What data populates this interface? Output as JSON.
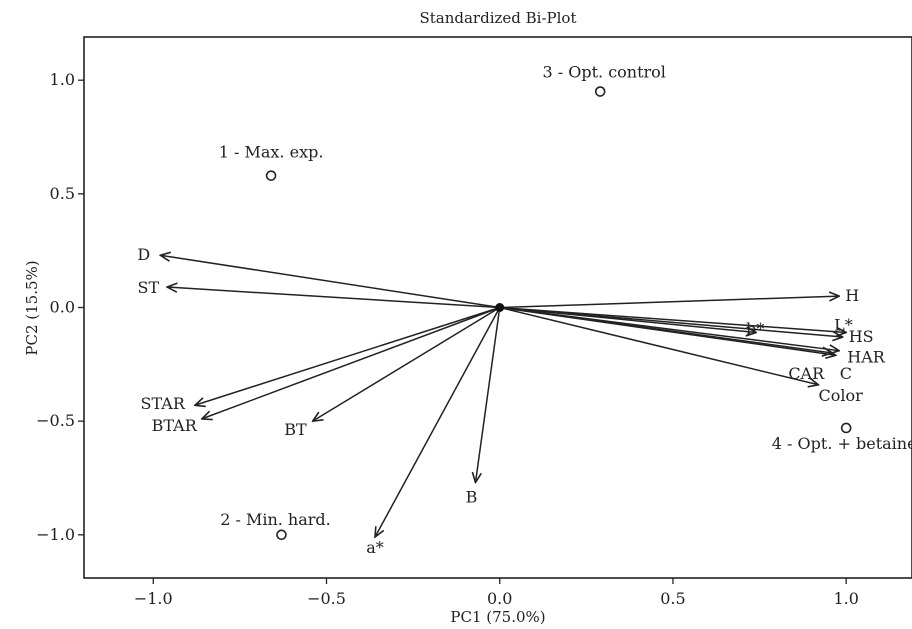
{
  "chart_data": {
    "type": "scatter",
    "title": "Standardized Bi-Plot",
    "xlabel": "PC1 (75.0%)",
    "ylabel": "PC2 (15.5%)",
    "xlim": [
      -1.2,
      1.19
    ],
    "ylim": [
      -1.19,
      1.19
    ],
    "xticks": [
      -1.0,
      -0.5,
      0.0,
      0.5,
      1.0
    ],
    "xtick_labels": [
      "−1.0",
      "−0.5",
      "0.0",
      "0.5",
      "1.0"
    ],
    "yticks": [
      1.0,
      0.5,
      0.0,
      -0.5,
      -1.0
    ],
    "ytick_labels": [
      "1.0",
      "0.5",
      "0.0",
      "−0.5",
      "−1.0"
    ],
    "grid": false,
    "points": [
      {
        "label": "1 - Max. exp.",
        "x": -0.66,
        "y": 0.58
      },
      {
        "label": "2 - Min. hard.",
        "x": -0.63,
        "y": -1.0
      },
      {
        "label": "3 - Opt. control",
        "x": 0.29,
        "y": 0.95
      },
      {
        "label": "4 - Opt. + betaine",
        "x": 1.0,
        "y": -0.53
      }
    ],
    "vectors": [
      {
        "label": "D",
        "x": -0.98,
        "y": 0.23
      },
      {
        "label": "ST",
        "x": -0.96,
        "y": 0.09
      },
      {
        "label": "STAR",
        "x": -0.88,
        "y": -0.43
      },
      {
        "label": "BTAR",
        "x": -0.86,
        "y": -0.49
      },
      {
        "label": "BT",
        "x": -0.54,
        "y": -0.5
      },
      {
        "label": "a*",
        "x": -0.36,
        "y": -1.01
      },
      {
        "label": "B",
        "x": -0.07,
        "y": -0.77
      },
      {
        "label": "H",
        "x": 0.98,
        "y": 0.05
      },
      {
        "label": "b*",
        "x": 0.74,
        "y": -0.11
      },
      {
        "label": "L*",
        "x": 1.0,
        "y": -0.11
      },
      {
        "label": "HS",
        "x": 0.99,
        "y": -0.13
      },
      {
        "label": "HAR",
        "x": 0.98,
        "y": -0.19
      },
      {
        "label": "CAR",
        "x": 0.96,
        "y": -0.2
      },
      {
        "label": "C",
        "x": 0.97,
        "y": -0.21
      },
      {
        "label": "Color",
        "x": 0.92,
        "y": -0.34
      }
    ]
  }
}
